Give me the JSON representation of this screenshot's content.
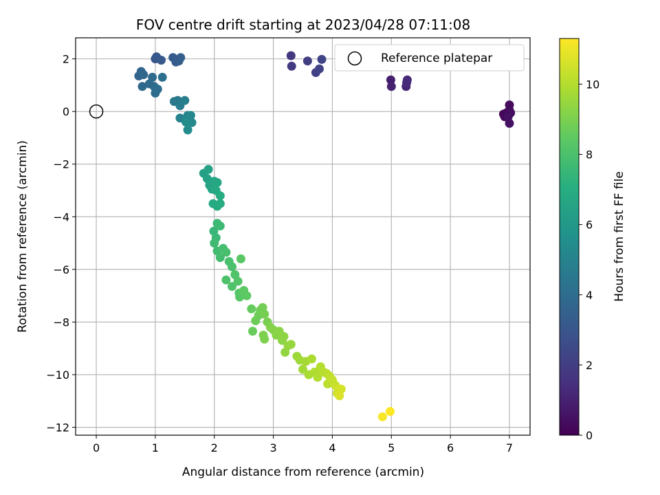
{
  "chart_data": {
    "type": "scatter",
    "title": "FOV centre drift starting at 2023/04/28 07:11:08",
    "xlabel": "Angular distance from reference (arcmin)",
    "ylabel": "Rotation from reference (arcmin)",
    "xlim": [
      -0.35,
      7.35
    ],
    "ylim": [
      -12.3,
      2.8
    ],
    "xticks": [
      0,
      1,
      2,
      3,
      4,
      5,
      6,
      7
    ],
    "yticks": [
      2,
      0,
      -2,
      -4,
      -6,
      -8,
      -10,
      -12
    ],
    "grid": true,
    "colormap": "viridis",
    "colorbar": {
      "label": "Hours from first FF file",
      "range": [
        0,
        11.3
      ],
      "ticks": [
        0,
        2,
        4,
        6,
        8,
        10
      ]
    },
    "legend": {
      "entries": [
        "Reference platepar"
      ],
      "position": "top-right"
    },
    "reference_point": {
      "x": 0,
      "y": 0,
      "label": "Reference platepar"
    },
    "series": [
      {
        "points": [
          [
            6.9,
            -0.1,
            0.15
          ],
          [
            6.92,
            -0.2,
            0.2
          ],
          [
            6.95,
            -0.05,
            0.25
          ],
          [
            7.0,
            0.25,
            0.3
          ],
          [
            7.0,
            0.05,
            0.35
          ],
          [
            7.02,
            -0.05,
            0.4
          ],
          [
            6.98,
            -0.2,
            0.45
          ],
          [
            7.0,
            -0.45,
            0.5
          ],
          [
            4.99,
            1.2,
            0.9
          ],
          [
            5.0,
            0.95,
            1.0
          ],
          [
            5.25,
            0.95,
            1.1
          ],
          [
            5.27,
            1.2,
            1.2
          ],
          [
            5.26,
            1.1,
            1.3
          ],
          [
            3.3,
            2.12,
            1.8
          ],
          [
            3.31,
            1.72,
            1.9
          ],
          [
            3.58,
            1.92,
            2.0
          ],
          [
            3.72,
            1.48,
            2.1
          ],
          [
            3.78,
            1.62,
            2.2
          ],
          [
            3.82,
            1.98,
            2.3
          ],
          [
            1.0,
            2.0,
            3.0
          ],
          [
            1.02,
            2.08,
            3.1
          ],
          [
            1.1,
            1.95,
            3.15
          ],
          [
            1.3,
            2.05,
            3.2
          ],
          [
            1.35,
            1.88,
            3.3
          ],
          [
            1.4,
            1.92,
            3.35
          ],
          [
            1.43,
            2.05,
            3.4
          ],
          [
            0.72,
            1.35,
            3.6
          ],
          [
            0.76,
            1.52,
            3.7
          ],
          [
            0.8,
            1.4,
            3.75
          ],
          [
            0.78,
            0.95,
            3.8
          ],
          [
            0.9,
            1.05,
            3.85
          ],
          [
            0.95,
            1.3,
            3.9
          ],
          [
            0.98,
            0.95,
            3.95
          ],
          [
            1.0,
            0.7,
            4.0
          ],
          [
            1.04,
            0.85,
            4.05
          ],
          [
            1.12,
            1.3,
            4.1
          ],
          [
            1.32,
            0.38,
            4.5
          ],
          [
            1.38,
            0.42,
            4.6
          ],
          [
            1.42,
            0.22,
            4.7
          ],
          [
            1.5,
            0.42,
            4.8
          ],
          [
            1.42,
            -0.25,
            4.9
          ],
          [
            1.5,
            -0.3,
            5.0
          ],
          [
            1.55,
            -0.15,
            5.1
          ],
          [
            1.6,
            -0.15,
            5.2
          ],
          [
            1.62,
            -0.42,
            5.3
          ],
          [
            1.55,
            -0.7,
            5.4
          ],
          [
            1.52,
            -0.4,
            5.45
          ],
          [
            1.82,
            -2.35,
            6.4
          ],
          [
            1.88,
            -2.55,
            6.45
          ],
          [
            1.9,
            -2.2,
            6.5
          ],
          [
            1.92,
            -2.8,
            6.55
          ],
          [
            1.96,
            -2.95,
            6.6
          ],
          [
            2.0,
            -2.65,
            6.65
          ],
          [
            2.05,
            -2.7,
            6.7
          ],
          [
            2.03,
            -3.0,
            6.75
          ],
          [
            1.98,
            -3.5,
            6.8
          ],
          [
            2.05,
            -3.6,
            6.85
          ],
          [
            2.1,
            -3.5,
            6.9
          ],
          [
            2.1,
            -3.2,
            6.95
          ],
          [
            1.99,
            -4.55,
            7.5
          ],
          [
            2.03,
            -4.8,
            7.55
          ],
          [
            2.05,
            -4.25,
            7.6
          ],
          [
            2.1,
            -4.35,
            7.65
          ],
          [
            2.0,
            -5.0,
            7.7
          ],
          [
            2.05,
            -5.3,
            7.75
          ],
          [
            2.1,
            -5.55,
            7.8
          ],
          [
            2.15,
            -5.2,
            7.85
          ],
          [
            2.2,
            -5.35,
            7.9
          ],
          [
            2.25,
            -5.7,
            7.95
          ],
          [
            2.3,
            -5.9,
            8.0
          ],
          [
            2.2,
            -6.4,
            8.05
          ],
          [
            2.3,
            -6.65,
            8.1
          ],
          [
            2.35,
            -6.2,
            8.15
          ],
          [
            2.4,
            -6.45,
            8.2
          ],
          [
            2.42,
            -6.9,
            8.25
          ],
          [
            2.43,
            -7.05,
            8.3
          ],
          [
            2.45,
            -5.6,
            8.35
          ],
          [
            2.5,
            -6.8,
            8.4
          ],
          [
            2.55,
            -7.0,
            8.45
          ],
          [
            2.63,
            -7.5,
            8.6
          ],
          [
            2.65,
            -8.35,
            8.65
          ],
          [
            2.7,
            -7.95,
            8.7
          ],
          [
            2.75,
            -7.75,
            8.75
          ],
          [
            2.78,
            -7.55,
            8.8
          ],
          [
            2.82,
            -7.45,
            8.85
          ],
          [
            2.85,
            -7.7,
            8.9
          ],
          [
            2.9,
            -8.0,
            8.95
          ],
          [
            2.83,
            -8.5,
            9.0
          ],
          [
            2.85,
            -8.65,
            9.05
          ],
          [
            2.95,
            -8.2,
            9.1
          ],
          [
            3.0,
            -8.3,
            9.15
          ],
          [
            3.05,
            -8.5,
            9.2
          ],
          [
            3.1,
            -8.35,
            9.25
          ],
          [
            3.15,
            -8.7,
            9.3
          ],
          [
            3.18,
            -8.55,
            9.35
          ],
          [
            3.2,
            -9.15,
            9.4
          ],
          [
            3.25,
            -8.9,
            9.45
          ],
          [
            3.3,
            -8.85,
            9.5
          ],
          [
            3.4,
            -9.3,
            9.6
          ],
          [
            3.45,
            -9.45,
            9.65
          ],
          [
            3.5,
            -9.8,
            9.7
          ],
          [
            3.55,
            -9.5,
            9.75
          ],
          [
            3.6,
            -10.0,
            9.8
          ],
          [
            3.65,
            -9.4,
            9.85
          ],
          [
            3.7,
            -9.9,
            9.9
          ],
          [
            3.75,
            -10.1,
            9.95
          ],
          [
            3.8,
            -9.7,
            10.0
          ],
          [
            3.85,
            -9.9,
            10.05
          ],
          [
            3.9,
            -9.95,
            10.1
          ],
          [
            3.92,
            -10.35,
            10.15
          ],
          [
            3.95,
            -10.05,
            10.2
          ],
          [
            4.0,
            -10.2,
            10.3
          ],
          [
            4.05,
            -10.4,
            10.35
          ],
          [
            4.08,
            -10.7,
            10.4
          ],
          [
            4.1,
            -10.55,
            10.5
          ],
          [
            4.15,
            -10.55,
            10.6
          ],
          [
            4.12,
            -10.8,
            10.7
          ],
          [
            4.85,
            -11.6,
            11.2
          ],
          [
            4.98,
            -11.4,
            11.3
          ]
        ]
      }
    ]
  }
}
